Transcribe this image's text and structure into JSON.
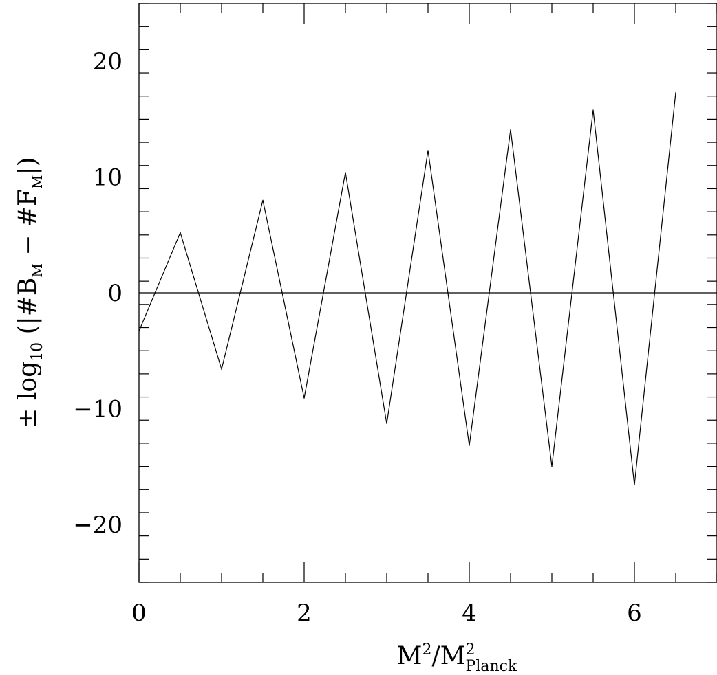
{
  "chart_data": {
    "type": "line",
    "title": "",
    "xlabel": {
      "base": "M",
      "sup": "2",
      "sep": "/",
      "base2": "M",
      "sup2": "2",
      "sub2": "Planck"
    },
    "ylabel": {
      "prefix": "± log",
      "sub": "10",
      "open": " (|#B",
      "sub_b": "M",
      "minus": " − #F",
      "sub_f": "M",
      "close": "|)"
    },
    "xlim": [
      0,
      7
    ],
    "ylim": [
      -25,
      25
    ],
    "x_ticks": [
      0,
      2,
      4,
      6
    ],
    "x_tick_labels": [
      "0",
      "2",
      "4",
      "6"
    ],
    "y_ticks": [
      -20,
      -10,
      0,
      10,
      20
    ],
    "y_tick_labels": [
      "−20",
      "−10",
      "0",
      "10",
      "20"
    ],
    "grid": false,
    "reference_line_y": 0,
    "series": [
      {
        "x": [
          0,
          0.5,
          1,
          1.5,
          2,
          2.5,
          3,
          3.5,
          4,
          4.5,
          5,
          5.5,
          6,
          6.5
        ],
        "y": [
          -3.3,
          5.2,
          -6.6,
          8.0,
          -9.1,
          10.4,
          -11.3,
          12.3,
          -13.2,
          14.1,
          -15.0,
          15.8,
          -16.6,
          17.3
        ]
      }
    ]
  }
}
